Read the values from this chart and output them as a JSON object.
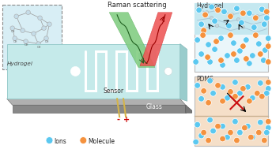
{
  "raman_text": "Raman scattering",
  "hydrogel_label": "Hydrogel",
  "sensor_label": "Sensor",
  "glass_label": "Glass",
  "pdms_label": "PDMS",
  "ions_label": "Ions",
  "molecule_label": "Molecule",
  "ion_color": "#5bc8f0",
  "molecule_color": "#f5923e",
  "bg_color": "#ffffff",
  "chip_color": "#aadddd",
  "chip_top_color": "#c5eaea",
  "glass_dark": "#888888",
  "glass_side": "#aaaaaa",
  "wire_color": "#d4b44a",
  "green_beam": "#70c070",
  "red_beam": "#dd4444",
  "hydrogel_box_fc": "#d8eef5",
  "hydrogel_panel_top": "#c5e8f0",
  "hydrogel_panel_bot": "#f0faff",
  "pdms_panel_top": "#f5dfc8",
  "pdms_panel_bot": "#f8eedf",
  "right_panel_ec": "#bbbbbb",
  "network_color": "#aac8d8",
  "node_color": "#c0d8e0",
  "mol_ec": "#ffffff"
}
